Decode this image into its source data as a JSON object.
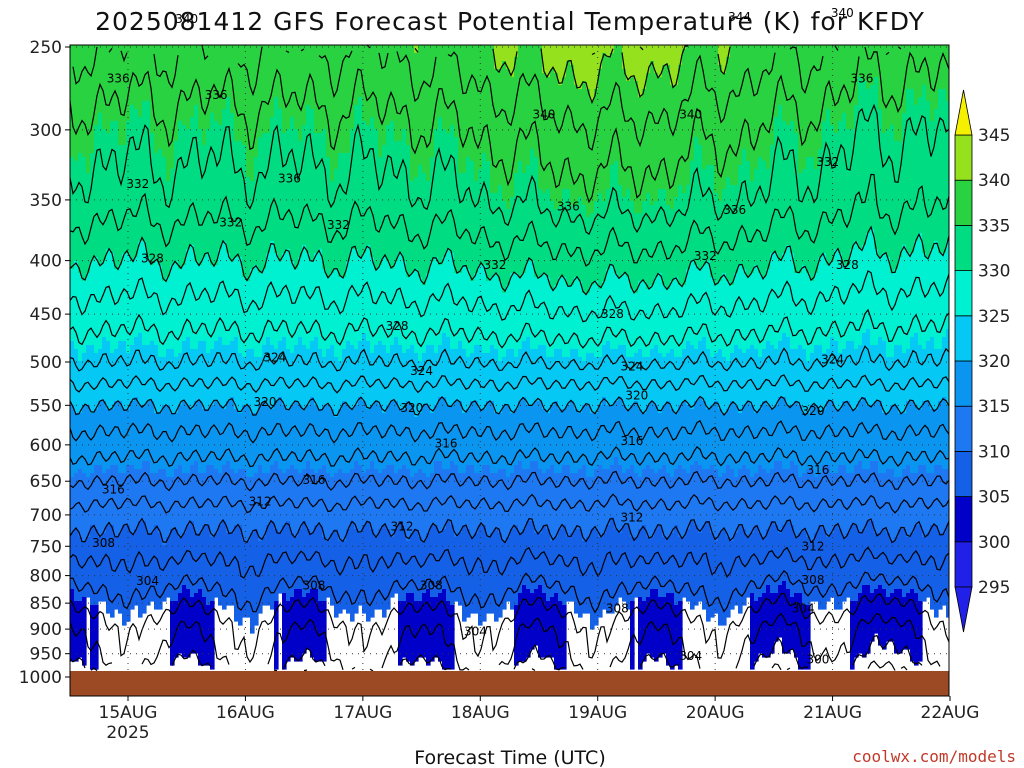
{
  "chart_data": {
    "type": "heatmap",
    "title": "2025081412 GFS Forecast Potential Temperature (K) for KFDY",
    "xlabel": "Forecast Time (UTC)",
    "ylabel": "",
    "credit": "coolwx.com/models",
    "x_ticks": [
      {
        "label": "15AUG",
        "sub": "2025",
        "hour": 12
      },
      {
        "label": "16AUG",
        "sub": "",
        "hour": 36
      },
      {
        "label": "17AUG",
        "sub": "",
        "hour": 60
      },
      {
        "label": "18AUG",
        "sub": "",
        "hour": 84
      },
      {
        "label": "19AUG",
        "sub": "",
        "hour": 108
      },
      {
        "label": "20AUG",
        "sub": "",
        "hour": 132
      },
      {
        "label": "21AUG",
        "sub": "",
        "hour": 156
      },
      {
        "label": "22AUG",
        "sub": "",
        "hour": 180
      }
    ],
    "x_range_hours": [
      0,
      180
    ],
    "y_ticks": [
      250,
      300,
      350,
      400,
      450,
      500,
      550,
      600,
      650,
      700,
      750,
      800,
      850,
      900,
      950,
      1000
    ],
    "y_range_hPa": [
      200,
      1030
    ],
    "y_scale": "log",
    "ground_color": "#9b4a24",
    "colorbar": {
      "ticks": [
        295,
        300,
        305,
        310,
        315,
        320,
        325,
        330,
        335,
        340,
        345
      ],
      "colors": [
        "#2020e8",
        "#0000c8",
        "#1460e6",
        "#1e78f2",
        "#0a96f0",
        "#05c8f5",
        "#00f0d2",
        "#00dc82",
        "#28d240",
        "#96e11e",
        "#f5f000"
      ],
      "extend": "both"
    },
    "profile": {
      "pressure": [
        200,
        250,
        300,
        350,
        400,
        450,
        500,
        550,
        600,
        650,
        700,
        750,
        800,
        850,
        900,
        950,
        1000
      ],
      "theta_K": [
        344,
        338,
        335,
        333,
        330,
        327,
        324,
        320,
        317,
        314,
        311,
        309,
        307,
        305,
        303,
        302,
        300
      ]
    },
    "contour_interval_K": 2,
    "contour_labels": [
      {
        "text": "344",
        "hour": 12,
        "p": 215
      },
      {
        "text": "340",
        "hour": 24,
        "p": 235
      },
      {
        "text": "336",
        "hour": 10,
        "p": 268
      },
      {
        "text": "336",
        "hour": 30,
        "p": 278
      },
      {
        "text": "332",
        "hour": 14,
        "p": 338
      },
      {
        "text": "332",
        "hour": 33,
        "p": 368
      },
      {
        "text": "328",
        "hour": 17,
        "p": 398
      },
      {
        "text": "340",
        "hour": 97,
        "p": 290
      },
      {
        "text": "340",
        "hour": 127,
        "p": 290
      },
      {
        "text": "344",
        "hour": 137,
        "p": 234
      },
      {
        "text": "340",
        "hour": 158,
        "p": 232
      },
      {
        "text": "336",
        "hour": 45,
        "p": 334
      },
      {
        "text": "336",
        "hour": 102,
        "p": 355
      },
      {
        "text": "336",
        "hour": 136,
        "p": 358
      },
      {
        "text": "336",
        "hour": 162,
        "p": 268
      },
      {
        "text": "332",
        "hour": 55,
        "p": 370
      },
      {
        "text": "332",
        "hour": 87,
        "p": 404
      },
      {
        "text": "332",
        "hour": 130,
        "p": 396
      },
      {
        "text": "332",
        "hour": 155,
        "p": 322
      },
      {
        "text": "328",
        "hour": 67,
        "p": 462
      },
      {
        "text": "328",
        "hour": 111,
        "p": 450
      },
      {
        "text": "328",
        "hour": 159,
        "p": 404
      },
      {
        "text": "324",
        "hour": 42,
        "p": 495
      },
      {
        "text": "324",
        "hour": 72,
        "p": 510
      },
      {
        "text": "324",
        "hour": 115,
        "p": 505
      },
      {
        "text": "324",
        "hour": 156,
        "p": 497
      },
      {
        "text": "320",
        "hour": 40,
        "p": 546
      },
      {
        "text": "320",
        "hour": 70,
        "p": 553
      },
      {
        "text": "320",
        "hour": 116,
        "p": 538
      },
      {
        "text": "320",
        "hour": 152,
        "p": 557
      },
      {
        "text": "316",
        "hour": 9,
        "p": 662
      },
      {
        "text": "316",
        "hour": 50,
        "p": 648
      },
      {
        "text": "316",
        "hour": 77,
        "p": 598
      },
      {
        "text": "316",
        "hour": 115,
        "p": 595
      },
      {
        "text": "316",
        "hour": 153,
        "p": 634
      },
      {
        "text": "312",
        "hour": 39,
        "p": 680
      },
      {
        "text": "312",
        "hour": 68,
        "p": 718
      },
      {
        "text": "312",
        "hour": 115,
        "p": 704
      },
      {
        "text": "312",
        "hour": 152,
        "p": 750
      },
      {
        "text": "308",
        "hour": 7,
        "p": 745
      },
      {
        "text": "308",
        "hour": 50,
        "p": 818
      },
      {
        "text": "308",
        "hour": 74,
        "p": 818
      },
      {
        "text": "308",
        "hour": 112,
        "p": 860
      },
      {
        "text": "308",
        "hour": 152,
        "p": 808
      },
      {
        "text": "304",
        "hour": 16,
        "p": 810
      },
      {
        "text": "304",
        "hour": 83,
        "p": 905
      },
      {
        "text": "304",
        "hour": 127,
        "p": 955
      },
      {
        "text": "304",
        "hour": 150,
        "p": 860
      },
      {
        "text": "300",
        "hour": 153,
        "p": 962
      }
    ]
  }
}
